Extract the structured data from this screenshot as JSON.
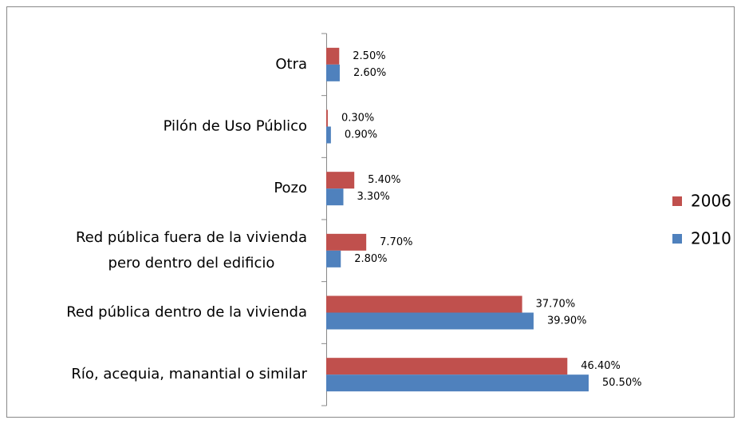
{
  "chart_data": {
    "type": "bar",
    "orientation": "horizontal",
    "categories": [
      "Otra",
      "Pilón de Uso Público",
      "Pozo",
      "Red pública fuera de la vivienda\npero dentro del edificio",
      "Red pública dentro de la vivienda",
      "Río, acequia, manantial o similar"
    ],
    "series": [
      {
        "name": "2006",
        "color": "#c0504d",
        "values": [
          2.5,
          0.3,
          5.4,
          7.7,
          37.7,
          46.4
        ],
        "value_labels": [
          "2.50%",
          "0.30%",
          "5.40%",
          "7.70%",
          "37.70%",
          "46.40%"
        ]
      },
      {
        "name": "2010",
        "color": "#4f81bd",
        "values": [
          2.6,
          0.9,
          3.3,
          2.8,
          39.9,
          50.5
        ],
        "value_labels": [
          "2.60%",
          "0.90%",
          "3.30%",
          "2.80%",
          "39.90%",
          "50.50%"
        ]
      }
    ],
    "xlim": [
      0,
      60
    ],
    "legend": "right"
  }
}
